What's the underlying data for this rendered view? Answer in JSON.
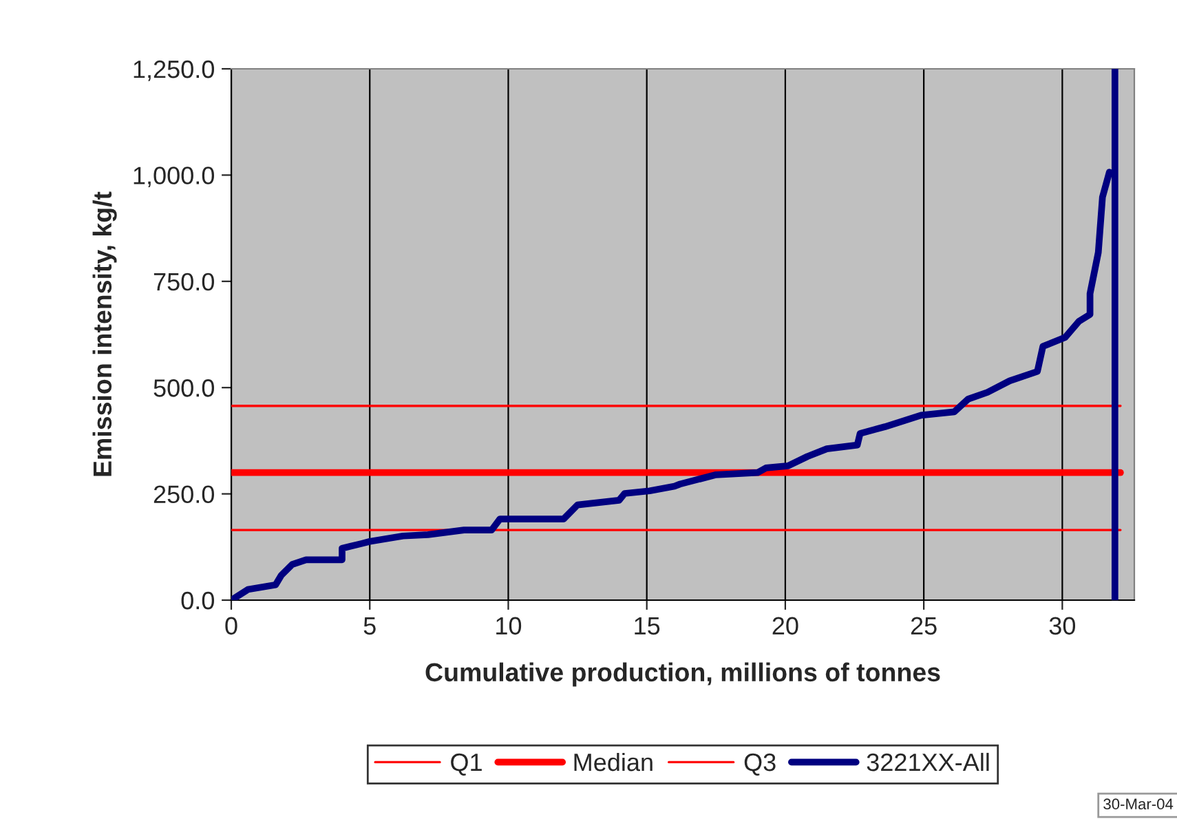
{
  "chart_data": {
    "type": "line",
    "xlabel": "Cumulative production, millions of tonnes",
    "ylabel": "Emission intensity, kg/t",
    "xlim": [
      0,
      32.6
    ],
    "xticks": [
      0,
      5,
      10,
      15,
      20,
      25,
      30
    ],
    "ylim": [
      0,
      1250
    ],
    "yticks": [
      {
        "value": 0,
        "label": "0.0"
      },
      {
        "value": 250,
        "label": "250.0"
      },
      {
        "value": 500,
        "label": "500.0"
      },
      {
        "value": 750,
        "label": "750.0"
      },
      {
        "value": 1000,
        "label": "1,000.0"
      },
      {
        "value": 1250,
        "label": "1,250.0"
      }
    ],
    "grid": "x",
    "legend": "bottom",
    "marker": "none",
    "line_style": "solid",
    "series": [
      {
        "name": "Q1",
        "color": "#ff0000",
        "x": [
          0,
          32.1
        ],
        "values": [
          165,
          165
        ]
      },
      {
        "name": "Median",
        "color": "#ff0000",
        "x": [
          0,
          32.1
        ],
        "values": [
          300,
          300
        ]
      },
      {
        "name": "Q3",
        "color": "#ff0000",
        "x": [
          0,
          32.1
        ],
        "values": [
          457,
          457
        ]
      },
      {
        "name": "3221XX-All",
        "color": "#000080",
        "x": [
          0,
          0.6,
          1.6,
          1.8,
          2.2,
          2.7,
          4.0,
          4.0,
          4.7,
          5.0,
          6.2,
          7.1,
          8.4,
          9.4,
          9.7,
          12.0,
          12.5,
          14.0,
          14.2,
          15.1,
          16.0,
          16.2,
          17.5,
          19.0,
          19.3,
          20.1,
          20.8,
          21.5,
          22.6,
          22.7,
          23.6,
          24.9,
          26.1,
          26.6,
          27.3,
          28.1,
          29.1,
          29.3,
          30.1,
          30.6,
          31.0,
          31.0,
          31.3,
          31.45,
          31.7
        ],
        "values": [
          0,
          25,
          36,
          58,
          84,
          95,
          95,
          122,
          133,
          138,
          151,
          154,
          165,
          165,
          191,
          191,
          224,
          235,
          251,
          257,
          268,
          273,
          295,
          300,
          311,
          316,
          338,
          356,
          365,
          392,
          408,
          435,
          443,
          473,
          489,
          516,
          538,
          597,
          618,
          656,
          672,
          721,
          818,
          948,
          1007
        ]
      }
    ],
    "ref_lines": [
      {
        "axis": "x",
        "value": 31.9,
        "color": "#000080"
      }
    ],
    "annotations": [
      "30-Mar-04"
    ]
  }
}
